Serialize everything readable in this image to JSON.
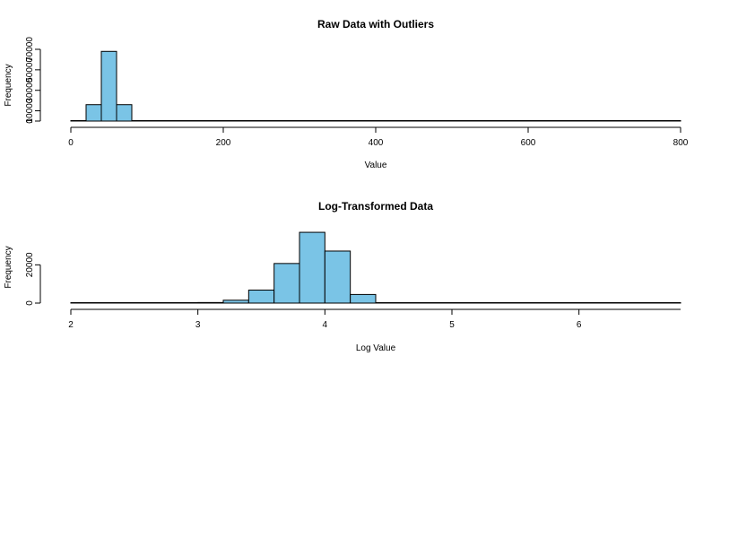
{
  "chart_data": [
    {
      "type": "bar",
      "title": "Raw Data with Outliers",
      "xlabel": "Value",
      "ylabel": "Frequency",
      "xlim": [
        0,
        800
      ],
      "ylim": [
        0,
        70000
      ],
      "x_ticks": [
        "0",
        "200",
        "400",
        "600",
        "800"
      ],
      "y_ticks": [
        "0",
        "10000",
        "30000",
        "50000",
        "70000"
      ],
      "bar_color": "#7ac4e6",
      "bin_edges": [
        0,
        20,
        40,
        60,
        80,
        100,
        120,
        140,
        160,
        180,
        200,
        220,
        240,
        260,
        280,
        300,
        320,
        340,
        360,
        380,
        400,
        420,
        440,
        460,
        480,
        500,
        520,
        540,
        560,
        580,
        600,
        620,
        640,
        660,
        680,
        700,
        720,
        740,
        760,
        780,
        800
      ],
      "values": [
        0,
        16000,
        68000,
        16000,
        200,
        0,
        0,
        0,
        0,
        0,
        0,
        0,
        0,
        0,
        0,
        0,
        0,
        0,
        0,
        0,
        0,
        0,
        0,
        0,
        0,
        0,
        0,
        0,
        0,
        0,
        0,
        0,
        0,
        0,
        0,
        0,
        0,
        0,
        0,
        0
      ]
    },
    {
      "type": "bar",
      "title": "Log-Transformed Data",
      "xlabel": "Log Value",
      "ylabel": "Frequency",
      "xlim": [
        2,
        6.8
      ],
      "ylim": [
        0,
        30000
      ],
      "x_ticks": [
        "2",
        "3",
        "4",
        "5",
        "6"
      ],
      "y_ticks": [
        "0",
        "20000"
      ],
      "bar_color": "#7ac4e6",
      "bin_edges": [
        2.0,
        2.2,
        2.4,
        2.6,
        2.8,
        3.0,
        3.2,
        3.4,
        3.6,
        3.8,
        4.0,
        4.2,
        4.4,
        4.6,
        4.8,
        5.0,
        5.2,
        5.4,
        5.6,
        5.8,
        6.0,
        6.2,
        6.4,
        6.6,
        6.8
      ],
      "values": [
        0,
        0,
        0,
        0,
        0,
        300,
        1500,
        6800,
        20700,
        37000,
        27200,
        4500,
        100,
        0,
        0,
        0,
        0,
        0,
        0,
        0,
        0,
        0,
        0,
        0
      ]
    }
  ]
}
